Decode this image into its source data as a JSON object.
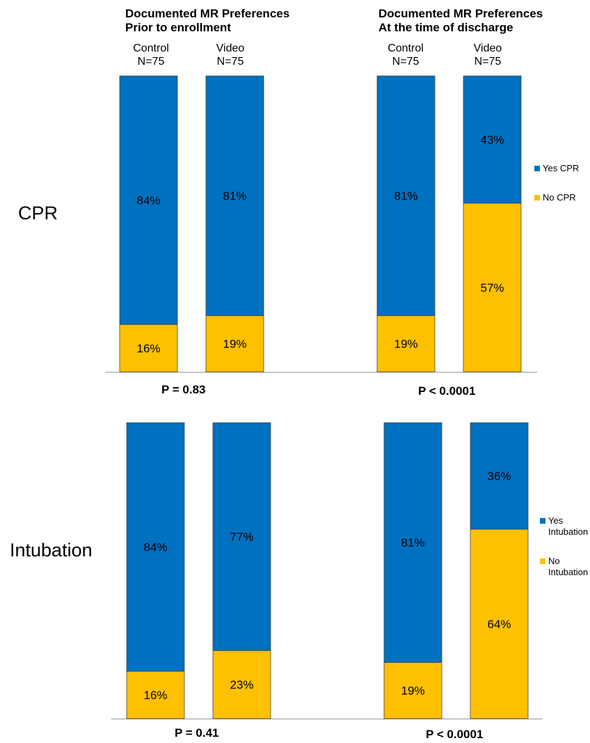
{
  "columns": [
    {
      "title_line1": "Documented MR Preferences",
      "title_line2": "Prior to enrollment",
      "groups": [
        {
          "name": "Control",
          "n": "N=75"
        },
        {
          "name": "Video",
          "n": "N=75"
        }
      ]
    },
    {
      "title_line1": "Documented MR Preferences",
      "title_line2": "At the time of discharge",
      "groups": [
        {
          "name": "Control",
          "n": "N=75"
        },
        {
          "name": "Video",
          "n": "N=75"
        }
      ]
    }
  ],
  "rows": [
    {
      "label": "CPR",
      "p_values": [
        "P = 0.83",
        "P < 0.0001"
      ],
      "legend": [
        {
          "label": "Yes CPR",
          "color": "#0070C0"
        },
        {
          "label": "No CPR",
          "color": "#FFC000"
        }
      ]
    },
    {
      "label": "Intubation",
      "p_values": [
        "P = 0.41",
        "P < 0.0001"
      ],
      "legend": [
        {
          "label": "Yes Intubation",
          "color": "#0070C0"
        },
        {
          "label": "No Intubation",
          "color": "#FFC000"
        }
      ]
    }
  ],
  "chart_data": [
    {
      "type": "bar",
      "stacked": true,
      "row": "CPR",
      "panel": "Prior to enrollment",
      "categories": [
        "Control",
        "Video"
      ],
      "series": [
        {
          "name": "Yes CPR",
          "values": [
            84,
            81
          ],
          "color": "#0070C0",
          "labels": [
            "84%",
            "81%"
          ]
        },
        {
          "name": "No CPR",
          "values": [
            16,
            19
          ],
          "color": "#FFC000",
          "labels": [
            "16%",
            "19%"
          ]
        }
      ],
      "ylim": [
        0,
        100
      ]
    },
    {
      "type": "bar",
      "stacked": true,
      "row": "CPR",
      "panel": "At the time of discharge",
      "categories": [
        "Control",
        "Video"
      ],
      "series": [
        {
          "name": "Yes CPR",
          "values": [
            81,
            43
          ],
          "color": "#0070C0",
          "labels": [
            "81%",
            "43%"
          ]
        },
        {
          "name": "No CPR",
          "values": [
            19,
            57
          ],
          "color": "#FFC000",
          "labels": [
            "19%",
            "57%"
          ]
        }
      ],
      "ylim": [
        0,
        100
      ]
    },
    {
      "type": "bar",
      "stacked": true,
      "row": "Intubation",
      "panel": "Prior to enrollment",
      "categories": [
        "Control",
        "Video"
      ],
      "series": [
        {
          "name": "Yes Intubation",
          "values": [
            84,
            77
          ],
          "color": "#0070C0",
          "labels": [
            "84%",
            "77%"
          ]
        },
        {
          "name": "No Intubation",
          "values": [
            16,
            23
          ],
          "color": "#FFC000",
          "labels": [
            "16%",
            "23%"
          ]
        }
      ],
      "ylim": [
        0,
        100
      ]
    },
    {
      "type": "bar",
      "stacked": true,
      "row": "Intubation",
      "panel": "At the time of discharge",
      "categories": [
        "Control",
        "Video"
      ],
      "series": [
        {
          "name": "Yes Intubation",
          "values": [
            81,
            36
          ],
          "color": "#0070C0",
          "labels": [
            "81%",
            "36%"
          ]
        },
        {
          "name": "No Intubation",
          "values": [
            19,
            64
          ],
          "color": "#FFC000",
          "labels": [
            "19%",
            "64%"
          ]
        }
      ],
      "ylim": [
        0,
        100
      ]
    }
  ]
}
